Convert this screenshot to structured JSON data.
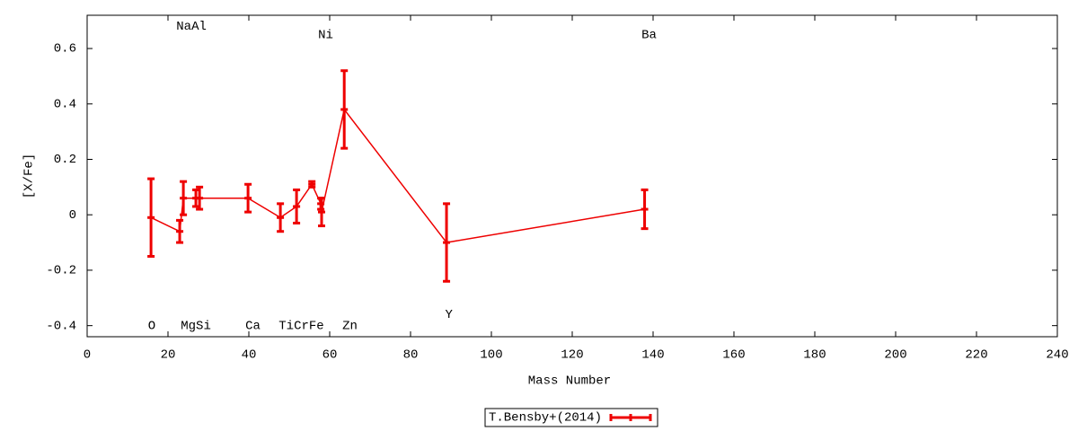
{
  "chart_data": {
    "type": "errorbar-line",
    "xlabel": "Mass Number",
    "ylabel": "[X/Fe]",
    "xlim": [
      0,
      240
    ],
    "xticks": [
      0,
      20,
      40,
      60,
      80,
      100,
      120,
      140,
      160,
      180,
      200,
      220,
      240
    ],
    "ylim": [
      -0.44,
      0.72
    ],
    "yticks": [
      -0.4,
      -0.2,
      0,
      0.2,
      0.4,
      0.6
    ],
    "legend": "bottom",
    "series": [
      {
        "name": "T.Bensby+(2014)",
        "color": "#ee0000",
        "x": [
          15.8,
          22.9,
          23.8,
          26.9,
          27.8,
          39.8,
          47.8,
          51.8,
          55.6,
          57.8,
          58.0,
          63.6,
          88.9,
          137.9
        ],
        "values": [
          -0.01,
          -0.06,
          0.06,
          0.06,
          0.06,
          0.06,
          -0.01,
          0.03,
          0.11,
          0.04,
          0.01,
          0.38,
          -0.1,
          0.02
        ],
        "errors": [
          0.14,
          0.04,
          0.06,
          0.03,
          0.04,
          0.05,
          0.05,
          0.06,
          0.01,
          0.02,
          0.05,
          0.14,
          0.14,
          0.07
        ]
      }
    ],
    "annotations": [
      {
        "text": "O",
        "x": 16,
        "y": -0.4
      },
      {
        "text": "NaAl",
        "x": 25.8,
        "y": 0.68
      },
      {
        "text": "MgSi",
        "x": 26.9,
        "y": -0.4
      },
      {
        "text": "Ca",
        "x": 41,
        "y": -0.4
      },
      {
        "text": "TiCrFe",
        "x": 53,
        "y": -0.4
      },
      {
        "text": "Ni",
        "x": 59,
        "y": 0.65
      },
      {
        "text": "Zn",
        "x": 65,
        "y": -0.4
      },
      {
        "text": "Y",
        "x": 89.5,
        "y": -0.36
      },
      {
        "text": "Ba",
        "x": 139,
        "y": 0.65
      }
    ]
  }
}
